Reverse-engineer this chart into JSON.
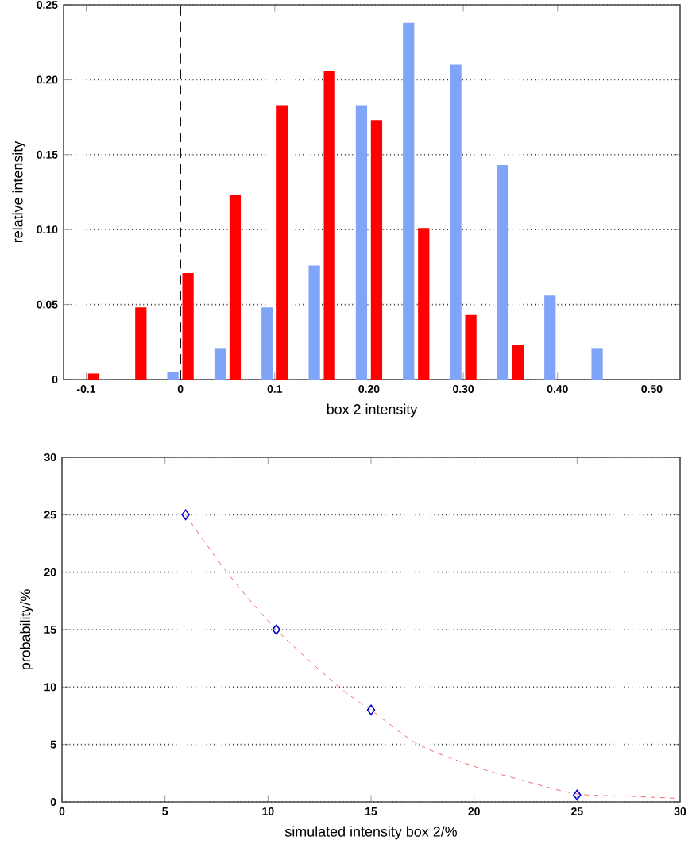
{
  "chart_data": [
    {
      "type": "bar",
      "xlabel": "box 2 intensity",
      "ylabel": "relative intensity",
      "x": [
        -0.1,
        -0.05,
        0,
        0.05,
        0.1,
        0.15,
        0.2,
        0.25,
        0.3,
        0.35,
        0.4,
        0.45
      ],
      "series": [
        {
          "color": "#80a4f8",
          "values": [
            null,
            null,
            0.005,
            0.021,
            0.048,
            0.076,
            0.183,
            0.238,
            0.21,
            0.143,
            0.056,
            0.021
          ]
        },
        {
          "color": "#ff0000",
          "values": [
            0.004,
            0.048,
            0.071,
            0.123,
            0.183,
            0.206,
            0.173,
            0.101,
            0.043,
            0.023,
            null,
            null
          ]
        }
      ],
      "xlim": [
        -0.124,
        0.53
      ],
      "xticks": [
        -0.1,
        0,
        0.1,
        {
          "value": 0.2,
          "label": "0.20"
        },
        {
          "value": 0.3,
          "label": "0.30"
        },
        {
          "value": 0.4,
          "label": "0.40"
        },
        {
          "value": 0.5,
          "label": "0.50"
        }
      ],
      "ylim": [
        0,
        0.25
      ],
      "yticks": [
        0,
        0.05,
        {
          "value": 0.1,
          "label": "0.10"
        },
        0.15,
        {
          "value": 0.2,
          "label": "0.20"
        },
        0.25
      ],
      "grid": "y",
      "ref_lines": [
        {
          "axis": "x",
          "value": 0,
          "line_style": "dashed"
        }
      ]
    },
    {
      "type": "scatter",
      "xlabel": "simulated intensity box 2/%",
      "ylabel": "probability/%",
      "series": [
        {
          "type": "scatter",
          "color": "#0000cc",
          "marker": "diamond",
          "x": [
            6,
            10.4,
            15,
            25
          ],
          "values": [
            25,
            15,
            8,
            0.6
          ]
        },
        {
          "type": "line",
          "color": "#e8484c",
          "line_style": "dashed",
          "x": [
            6,
            8,
            10.4,
            13.45,
            15,
            17.3,
            20,
            22.5,
            25,
            27.5,
            30
          ],
          "values": [
            25,
            20,
            15,
            10,
            8,
            5,
            3.1,
            1.8,
            0.7,
            0.5,
            0.3
          ]
        }
      ],
      "xlim": [
        0,
        30
      ],
      "xticks": [
        0,
        5,
        10,
        15,
        20,
        25,
        30
      ],
      "ylim": [
        0,
        30
      ],
      "yticks": [
        0,
        5,
        10,
        15,
        20,
        25,
        30
      ],
      "grid": "y"
    }
  ]
}
